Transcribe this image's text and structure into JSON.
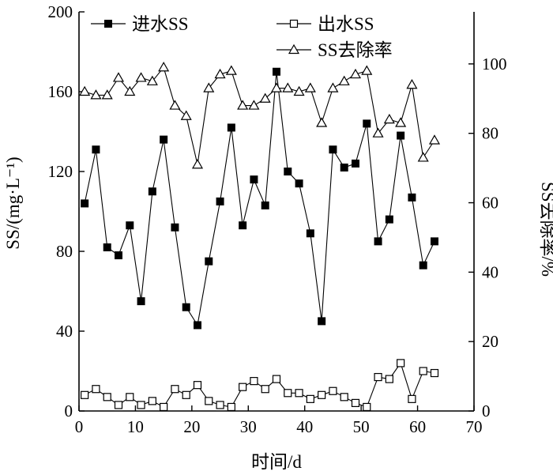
{
  "chart_data": {
    "type": "line",
    "xlabel": "时间/d",
    "ylabel_left": "SS/(mg·L⁻¹)",
    "ylabel_right": "SS去除率/%",
    "xlim": [
      0,
      70
    ],
    "ylim_left": [
      0,
      200
    ],
    "ylim_right": [
      0,
      115
    ],
    "x_ticks": [
      0,
      10,
      20,
      30,
      40,
      50,
      60,
      70
    ],
    "y_left_ticks": [
      0,
      40,
      80,
      120,
      160,
      200
    ],
    "y_right_ticks": [
      0,
      20,
      40,
      60,
      80,
      100
    ],
    "legend_position": "top",
    "series": [
      {
        "name": "进水SS",
        "axis": "left",
        "marker": "filled-square",
        "x": [
          1,
          3,
          5,
          7,
          9,
          11,
          13,
          15,
          17,
          19,
          21,
          23,
          25,
          27,
          29,
          31,
          33,
          35,
          37,
          39,
          41,
          43,
          45,
          47,
          49,
          51,
          53,
          55,
          57,
          59,
          61,
          63
        ],
        "values": [
          104,
          131,
          82,
          78,
          93,
          55,
          110,
          136,
          92,
          52,
          43,
          75,
          105,
          142,
          93,
          116,
          103,
          170,
          120,
          114,
          89,
          45,
          131,
          122,
          124,
          144,
          85,
          96,
          138,
          107,
          73,
          85
        ]
      },
      {
        "name": "出水SS",
        "axis": "left",
        "marker": "open-square",
        "x": [
          1,
          3,
          5,
          7,
          9,
          11,
          13,
          15,
          17,
          19,
          21,
          23,
          25,
          27,
          29,
          31,
          33,
          35,
          37,
          39,
          41,
          43,
          45,
          47,
          49,
          51,
          53,
          55,
          57,
          59,
          61,
          63
        ],
        "values": [
          8,
          11,
          7,
          3,
          7,
          3,
          5,
          2,
          11,
          8,
          13,
          5,
          3,
          2,
          12,
          15,
          11,
          16,
          9,
          9,
          6,
          8,
          10,
          7,
          4,
          2,
          17,
          16,
          24,
          6,
          20,
          19
        ]
      },
      {
        "name": "SS去除率",
        "axis": "right",
        "marker": "open-triangle",
        "x": [
          1,
          3,
          5,
          7,
          9,
          11,
          13,
          15,
          17,
          19,
          21,
          23,
          25,
          27,
          29,
          31,
          33,
          35,
          37,
          39,
          41,
          43,
          45,
          47,
          49,
          51,
          53,
          55,
          57,
          59,
          61,
          63
        ],
        "values": [
          92,
          91,
          91,
          96,
          92,
          96,
          95,
          99,
          88,
          85,
          71,
          93,
          97,
          98,
          88,
          88,
          90,
          93,
          93,
          92,
          93,
          83,
          93,
          95,
          97,
          98,
          80,
          84,
          83,
          94,
          73,
          78
        ]
      }
    ]
  }
}
